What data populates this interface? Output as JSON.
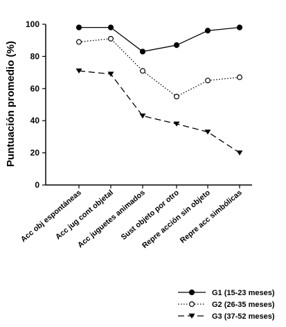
{
  "chart_data": {
    "type": "line",
    "ylabel": "Puntuación promedio (%)",
    "xlabel": "",
    "title": "",
    "ylim": [
      0,
      100
    ],
    "yticks": [
      0,
      20,
      40,
      60,
      80,
      100
    ],
    "grid": false,
    "legend_position": "bottom-right",
    "categories": [
      "Acc obj espontáneas",
      "Acc jug cont objetal",
      "Acc juguetes animados",
      "Sust objeto por otro",
      "Repre acción sin objeto",
      "Repre acc simbólicas"
    ],
    "series": [
      {
        "name": "G1 (15-23 meses)",
        "values": [
          98,
          98,
          83,
          87,
          96,
          98
        ],
        "marker": "filled-circle",
        "line": "solid",
        "color": "#000000"
      },
      {
        "name": "G2 (26-35 meses)",
        "values": [
          89,
          91,
          71,
          55,
          65,
          67
        ],
        "marker": "open-circle",
        "line": "dotted",
        "color": "#000000"
      },
      {
        "name": "G3 (37-52 meses)",
        "values": [
          71,
          69,
          43,
          38,
          33,
          20
        ],
        "marker": "filled-triangle-down",
        "line": "dashed",
        "color": "#000000"
      }
    ]
  }
}
